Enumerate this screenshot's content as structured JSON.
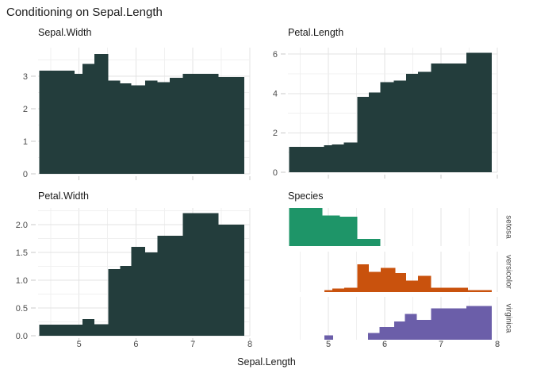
{
  "chart_data": {
    "type": "bar",
    "title": "Conditioning on Sepal.Length",
    "x": {
      "label": "Sepal.Length",
      "domain": [
        4.28,
        8.0
      ],
      "ticks": [
        5,
        6,
        7,
        8
      ],
      "tick_labels": [
        "5",
        "6",
        "7",
        "8"
      ],
      "minor_ticks": [
        4.5,
        5.5,
        6.5,
        7.5
      ]
    },
    "panels": [
      {
        "title": "Sepal.Width",
        "color": "dark",
        "ymax": 3.88,
        "yticks": [
          0,
          1,
          2,
          3
        ],
        "ytick_labels": [
          "0",
          "1",
          "2",
          "3"
        ],
        "yminor": [
          0.5,
          1.5,
          2.5,
          3.5
        ],
        "bins": [
          [
            4.3,
            4.92,
            3.17
          ],
          [
            4.92,
            5.06,
            3.07
          ],
          [
            5.06,
            5.27,
            3.38
          ],
          [
            5.27,
            5.51,
            3.68
          ],
          [
            5.51,
            5.72,
            2.87
          ],
          [
            5.72,
            5.92,
            2.78
          ],
          [
            5.92,
            6.16,
            2.72
          ],
          [
            6.16,
            6.38,
            2.87
          ],
          [
            6.38,
            6.59,
            2.82
          ],
          [
            6.59,
            6.82,
            2.95
          ],
          [
            6.82,
            7.45,
            3.08
          ],
          [
            7.45,
            7.9,
            2.98
          ]
        ]
      },
      {
        "title": "Petal.Length",
        "color": "dark",
        "ymax": 6.33,
        "yticks": [
          0,
          2,
          4,
          6
        ],
        "ytick_labels": [
          "0",
          "2",
          "4",
          "6"
        ],
        "yminor": [
          1,
          3,
          5
        ],
        "bins": [
          [
            4.3,
            4.92,
            1.3
          ],
          [
            4.92,
            5.06,
            1.38
          ],
          [
            5.06,
            5.27,
            1.41
          ],
          [
            5.27,
            5.51,
            1.51
          ],
          [
            5.51,
            5.72,
            3.84
          ],
          [
            5.72,
            5.92,
            4.06
          ],
          [
            5.92,
            6.16,
            4.58
          ],
          [
            6.16,
            6.38,
            4.66
          ],
          [
            6.38,
            6.59,
            5.0
          ],
          [
            6.59,
            6.82,
            5.11
          ],
          [
            6.82,
            7.45,
            5.52
          ],
          [
            7.45,
            7.9,
            6.06
          ]
        ]
      },
      {
        "title": "Petal.Width",
        "color": "dark",
        "ymax": 2.3,
        "yticks": [
          0,
          0.5,
          1.0,
          1.5,
          2.0
        ],
        "ytick_labels": [
          "0.0",
          "0.5",
          "1.0",
          "1.5",
          "2.0"
        ],
        "yminor": [
          0.25,
          0.75,
          1.25,
          1.75,
          2.25
        ],
        "bins": [
          [
            4.3,
            4.92,
            0.2
          ],
          [
            4.92,
            5.06,
            0.2
          ],
          [
            5.06,
            5.27,
            0.3
          ],
          [
            5.27,
            5.51,
            0.21
          ],
          [
            5.51,
            5.72,
            1.2
          ],
          [
            5.72,
            5.92,
            1.26
          ],
          [
            5.92,
            6.16,
            1.6
          ],
          [
            6.16,
            6.38,
            1.5
          ],
          [
            6.38,
            6.82,
            1.8
          ],
          [
            6.82,
            7.45,
            2.21
          ],
          [
            7.45,
            7.9,
            2.0
          ]
        ]
      },
      {
        "title": "Species",
        "facets": [
          {
            "label": "setosa",
            "color": "setosa",
            "bins": [
              [
                4.3,
                4.89,
                1.0
              ],
              [
                4.89,
                5.2,
                0.8
              ],
              [
                5.2,
                5.51,
                0.77
              ],
              [
                5.51,
                5.92,
                0.19
              ]
            ]
          },
          {
            "label": "versicolor",
            "color": "versicolor",
            "bins": [
              [
                4.93,
                5.07,
                0.05
              ],
              [
                5.07,
                5.28,
                0.09
              ],
              [
                5.28,
                5.51,
                0.11
              ],
              [
                5.51,
                5.72,
                0.69
              ],
              [
                5.72,
                5.93,
                0.5
              ],
              [
                5.93,
                6.19,
                0.6
              ],
              [
                6.19,
                6.38,
                0.47
              ],
              [
                6.38,
                6.59,
                0.28
              ],
              [
                6.59,
                6.82,
                0.4
              ],
              [
                6.82,
                7.48,
                0.11
              ],
              [
                7.48,
                7.9,
                0.05
              ]
            ]
          },
          {
            "label": "virginica",
            "color": "virginica",
            "bins": [
              [
                4.93,
                5.08,
                0.1
              ],
              [
                5.7,
                5.91,
                0.16
              ],
              [
                5.91,
                6.17,
                0.3
              ],
              [
                6.17,
                6.36,
                0.43
              ],
              [
                6.36,
                6.57,
                0.6
              ],
              [
                6.57,
                6.82,
                0.46
              ],
              [
                6.82,
                7.45,
                0.73
              ],
              [
                7.45,
                7.9,
                0.79
              ]
            ]
          }
        ]
      }
    ]
  },
  "colors": {
    "dark": "#233D3C",
    "setosa": "#1E9568",
    "versicolor": "#C9520D",
    "virginica": "#6B5EA9",
    "grid_major": "#E3E3E3",
    "grid_minor": "#F0F0F0",
    "axis_text": "#4D4D4D",
    "tick_mark": "#C9C9C9",
    "strip_text": "#474747"
  }
}
